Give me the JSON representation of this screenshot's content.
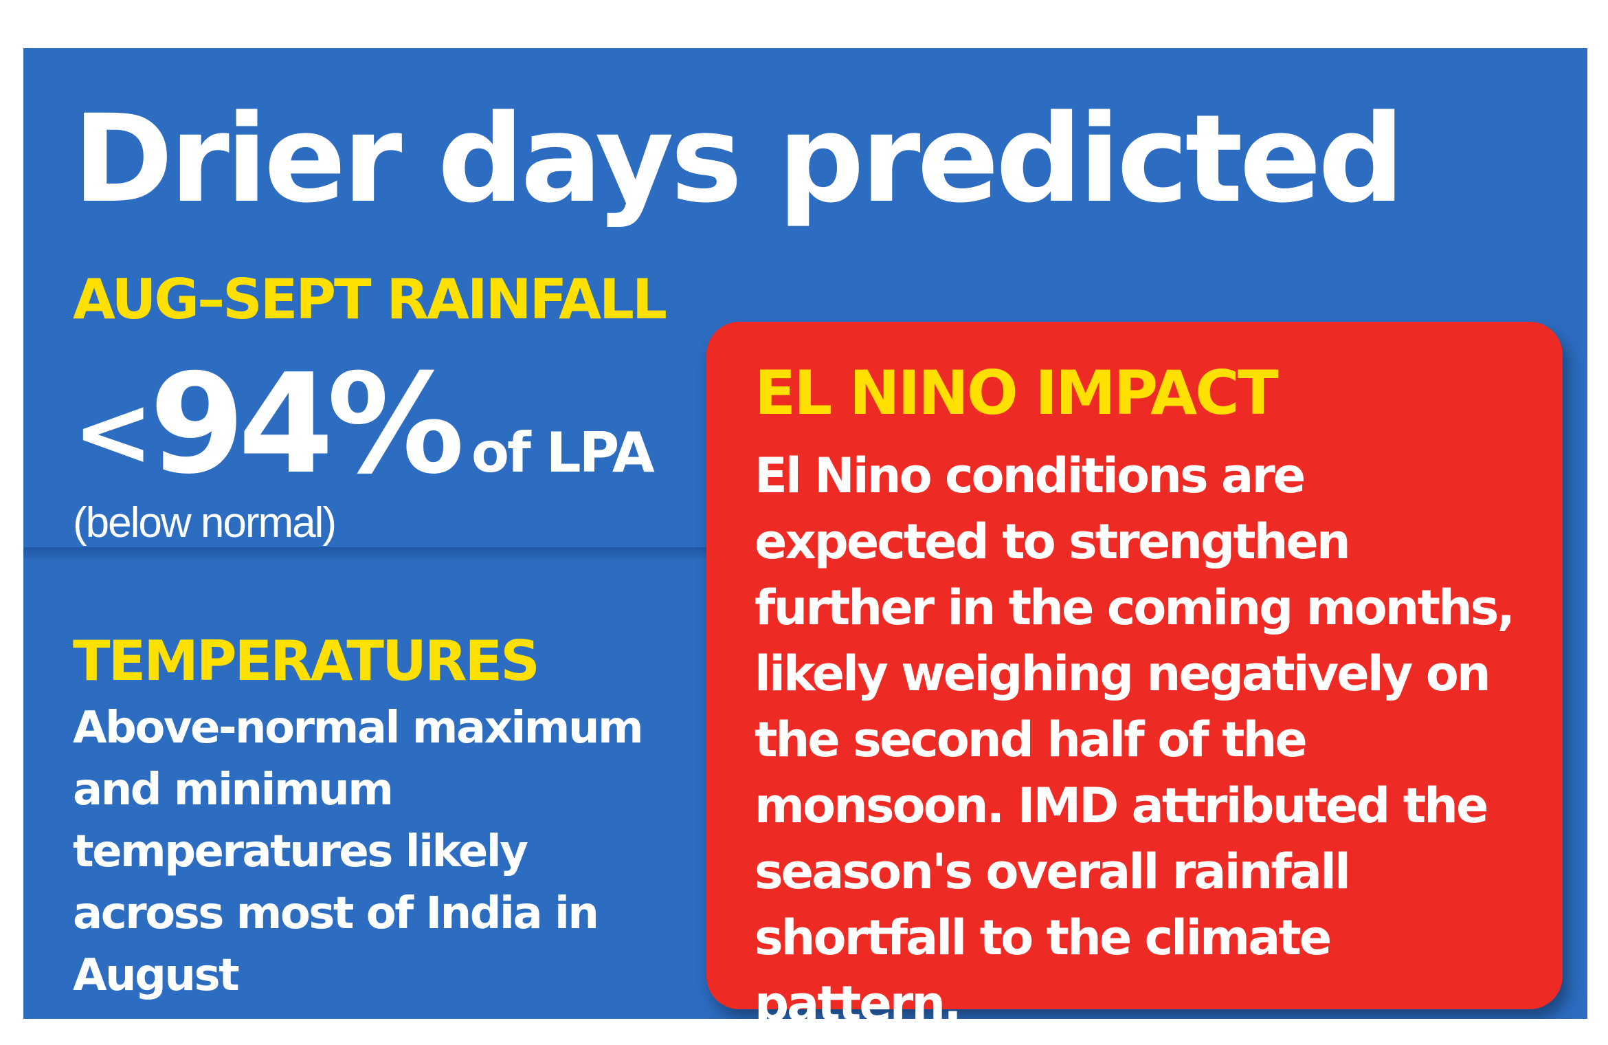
{
  "headline": "Drier days predicted",
  "rainfall": {
    "label": "AUG–SEPT RAINFALL",
    "prefix": "<",
    "value": "94%",
    "unit": "of LPA",
    "note": "(below normal)"
  },
  "temperatures": {
    "label": "TEMPERATURES",
    "text": "Above-normal maximum and minimum temperatures likely across most of India in August"
  },
  "el_nino": {
    "title": "EL NINO IMPACT",
    "text": "El Nino conditions are expected to strengthen further in the coming months, likely weighing negatively on the second half of the monsoon. IMD attributed the season's overall rainfall shortfall to the climate pattern."
  },
  "colors": {
    "background_blue": "#2c6cc1",
    "card_red": "#ee2a24",
    "label_yellow": "#ffe000",
    "text_white": "#ffffff"
  }
}
